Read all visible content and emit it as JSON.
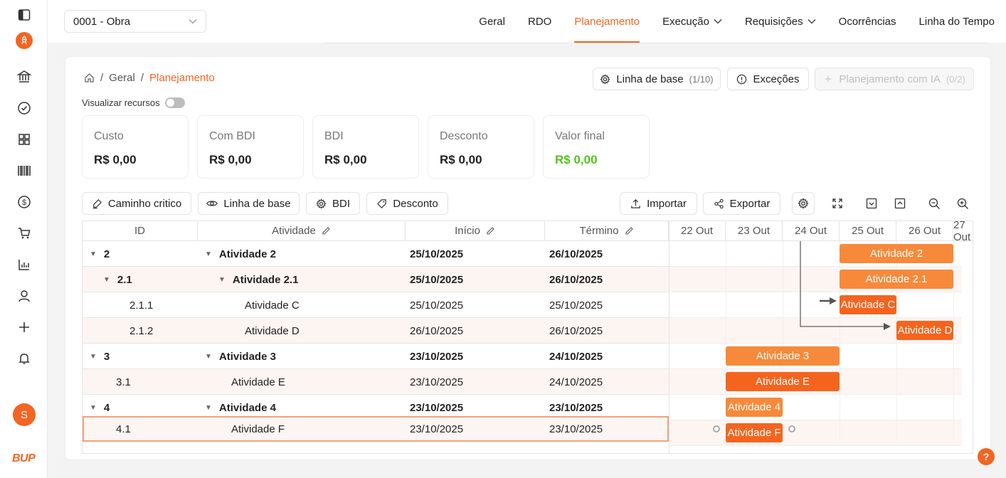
{
  "project": {
    "selected": "0001 - Obra"
  },
  "nav": [
    {
      "label": "Geral"
    },
    {
      "label": "RDO"
    },
    {
      "label": "Planejamento"
    },
    {
      "label": "Execução"
    },
    {
      "label": "Requisições"
    },
    {
      "label": "Ocorrências"
    },
    {
      "label": "Linha do Tempo"
    }
  ],
  "sidebar": {
    "icons": [
      "panel-toggle-icon",
      "rocket-logo-icon",
      "bank-icon",
      "check-circle-icon",
      "grid-icon",
      "barcode-icon",
      "dollar-icon",
      "cart-icon",
      "chart-icon",
      "user-icon",
      "plus-icon",
      "bell-icon"
    ],
    "avatar_initial": "S",
    "brand": "BUP"
  },
  "breadcrumb": {
    "sep": "/",
    "items": [
      "Geral",
      "Planejamento"
    ]
  },
  "actions": {
    "baseline": {
      "label": "Linha de base",
      "count": "(1/10)"
    },
    "exceptions": {
      "label": "Exceções"
    },
    "ai": {
      "label": "Planejamento com IA",
      "count": "(0/2)"
    }
  },
  "toggle": {
    "label": "Visualizar recursos",
    "on": false
  },
  "stats": [
    {
      "label": "Custo",
      "value": "R$ 0,00"
    },
    {
      "label": "Com BDI",
      "value": "R$ 0,00"
    },
    {
      "label": "BDI",
      "value": "R$ 0,00"
    },
    {
      "label": "Desconto",
      "value": "R$ 0,00"
    },
    {
      "label": "Valor final",
      "value": "R$ 0,00",
      "color": "#52c41a"
    }
  ],
  "toolbar": {
    "critical_path": "Caminho critico",
    "baseline": "Linha de base",
    "bdi": "BDI",
    "discount": "Desconto",
    "import": "Importar",
    "export": "Exportar"
  },
  "table": {
    "columns": [
      "ID",
      "Atividade",
      "Início",
      "Término"
    ],
    "rows": [
      {
        "id": "2",
        "name": "Atividade 2",
        "start": "25/10/2025",
        "end": "26/10/2025",
        "level": 0,
        "group": true
      },
      {
        "id": "2.1",
        "name": "Atividade 2.1",
        "start": "25/10/2025",
        "end": "26/10/2025",
        "level": 1,
        "group": true
      },
      {
        "id": "2.1.1",
        "name": "Atividade C",
        "start": "25/10/2025",
        "end": "25/10/2025",
        "level": 2,
        "group": false
      },
      {
        "id": "2.1.2",
        "name": "Atividade D",
        "start": "26/10/2025",
        "end": "26/10/2025",
        "level": 2,
        "group": false
      },
      {
        "id": "3",
        "name": "Atividade 3",
        "start": "23/10/2025",
        "end": "24/10/2025",
        "level": 0,
        "group": true
      },
      {
        "id": "3.1",
        "name": "Atividade E",
        "start": "23/10/2025",
        "end": "24/10/2025",
        "level": 1,
        "group": false
      },
      {
        "id": "4",
        "name": "Atividade 4",
        "start": "23/10/2025",
        "end": "23/10/2025",
        "level": 0,
        "group": true
      },
      {
        "id": "4.1",
        "name": "Atividade F",
        "start": "23/10/2025",
        "end": "23/10/2025",
        "level": 1,
        "group": false,
        "selected": true
      }
    ]
  },
  "gantt": {
    "days": [
      "22 Out",
      "23 Out",
      "24 Out",
      "25 Out",
      "26 Out",
      "27 Out"
    ],
    "bars": [
      {
        "label": "Atividade 2",
        "start_day": 25,
        "span": 2,
        "kind": "sum"
      },
      {
        "label": "Atividade 2.1",
        "start_day": 25,
        "span": 2,
        "kind": "sum"
      },
      {
        "label": "Atividade C",
        "start_day": 25,
        "span": 1,
        "kind": "task"
      },
      {
        "label": "Atividade D",
        "start_day": 26,
        "span": 1,
        "kind": "task"
      },
      {
        "label": "Atividade 3",
        "start_day": 23,
        "span": 2,
        "kind": "sum"
      },
      {
        "label": "Atividade E",
        "start_day": 23,
        "span": 2,
        "kind": "task"
      },
      {
        "label": "Atividade 4",
        "start_day": 23,
        "span": 1,
        "kind": "sum"
      },
      {
        "label": "Atividade F",
        "start_day": 23,
        "span": 1,
        "kind": "task"
      }
    ]
  },
  "help": {
    "label": "?"
  }
}
